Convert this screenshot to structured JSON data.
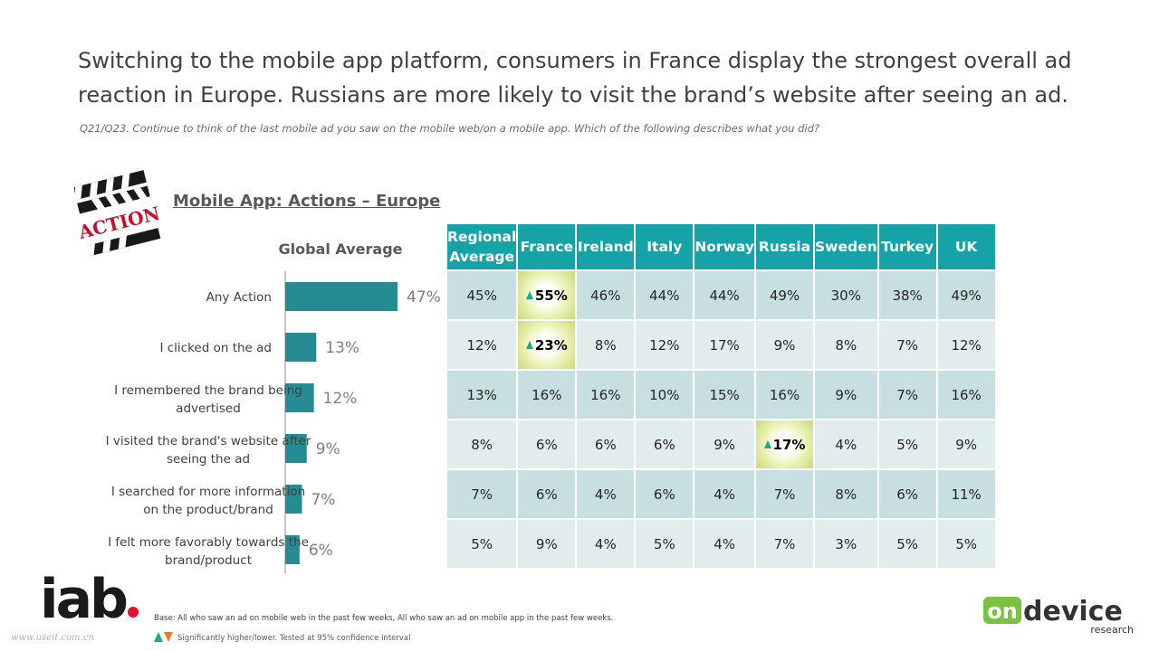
{
  "headline": "Switching to the mobile app platform, consumers in France display the strongest overall ad reaction in Europe. Russians are more likely to visit the brand’s website after seeing an ad.",
  "question": "Q21/Q23. Continue to think of the last mobile ad you saw on the mobile web/on a mobile app. Which of the following describes what you did?",
  "section_title": "Mobile App: Actions – Europe",
  "global_average_label": "Global Average",
  "clapper_text": "ACTION",
  "colors": {
    "bar": "#268b92",
    "header": "#16a3a8",
    "row_dark": "#c7dfe0",
    "row_light": "#e1eded",
    "sig_up": "#19a98c",
    "sig_down": "#f07d1a",
    "iab_red": "#e8112d"
  },
  "chart_data": {
    "type": "bar",
    "orientation": "horizontal",
    "categories": [
      "Any Action",
      "I clicked on the ad",
      "I remembered the brand being advertised",
      "I visited the brand's website after seeing the ad",
      "I searched for more information on the product/brand",
      "I felt more favorably towards the brand/product"
    ],
    "category_lines": [
      [
        "Any Action"
      ],
      [
        "I clicked on the ad"
      ],
      [
        "I remembered the brand being",
        "advertised"
      ],
      [
        "I visited the brand's website after",
        "seeing the ad"
      ],
      [
        "I searched for more information",
        "on the product/brand"
      ],
      [
        "I felt more favorably towards the",
        "brand/product"
      ]
    ],
    "values": [
      47,
      13,
      12,
      9,
      7,
      6
    ],
    "value_labels": [
      "47%",
      "13%",
      "12%",
      "9%",
      "7%",
      "6%"
    ],
    "xlim": [
      0,
      47
    ]
  },
  "table": {
    "header_regional": [
      "Regional",
      "Average"
    ],
    "countries": [
      "France",
      "Ireland",
      "Italy",
      "Norway",
      "Russia",
      "Sweden",
      "Turkey",
      "UK"
    ],
    "rows": [
      {
        "regional": "45%",
        "values": [
          "55%",
          "46%",
          "44%",
          "44%",
          "49%",
          "30%",
          "38%",
          "49%"
        ],
        "significant_up": [
          0
        ]
      },
      {
        "regional": "12%",
        "values": [
          "23%",
          "8%",
          "12%",
          "17%",
          "9%",
          "8%",
          "7%",
          "12%"
        ],
        "significant_up": [
          0
        ]
      },
      {
        "regional": "13%",
        "values": [
          "16%",
          "16%",
          "10%",
          "15%",
          "16%",
          "9%",
          "7%",
          "16%"
        ],
        "significant_up": []
      },
      {
        "regional": "8%",
        "values": [
          "6%",
          "6%",
          "6%",
          "9%",
          "17%",
          "4%",
          "5%",
          "9%"
        ],
        "significant_up": [
          4
        ]
      },
      {
        "regional": "7%",
        "values": [
          "6%",
          "4%",
          "6%",
          "4%",
          "7%",
          "8%",
          "6%",
          "11%"
        ],
        "significant_up": []
      },
      {
        "regional": "5%",
        "values": [
          "9%",
          "4%",
          "5%",
          "4%",
          "7%",
          "3%",
          "5%",
          "5%"
        ],
        "significant_up": []
      }
    ]
  },
  "footer": {
    "iab_logo": "iab",
    "watermark": "www.useit.com.cn",
    "base_note": "Base: All who saw an ad on mobile web in the past few weeks, All who saw an ad on mobile app in the past few weeks.",
    "legend_note": "Significantly higher/lower. Tested at 95% confidence interval",
    "ondevice_logo_main": "device",
    "ondevice_logo_on": "on",
    "ondevice_logo_sub": "research"
  }
}
